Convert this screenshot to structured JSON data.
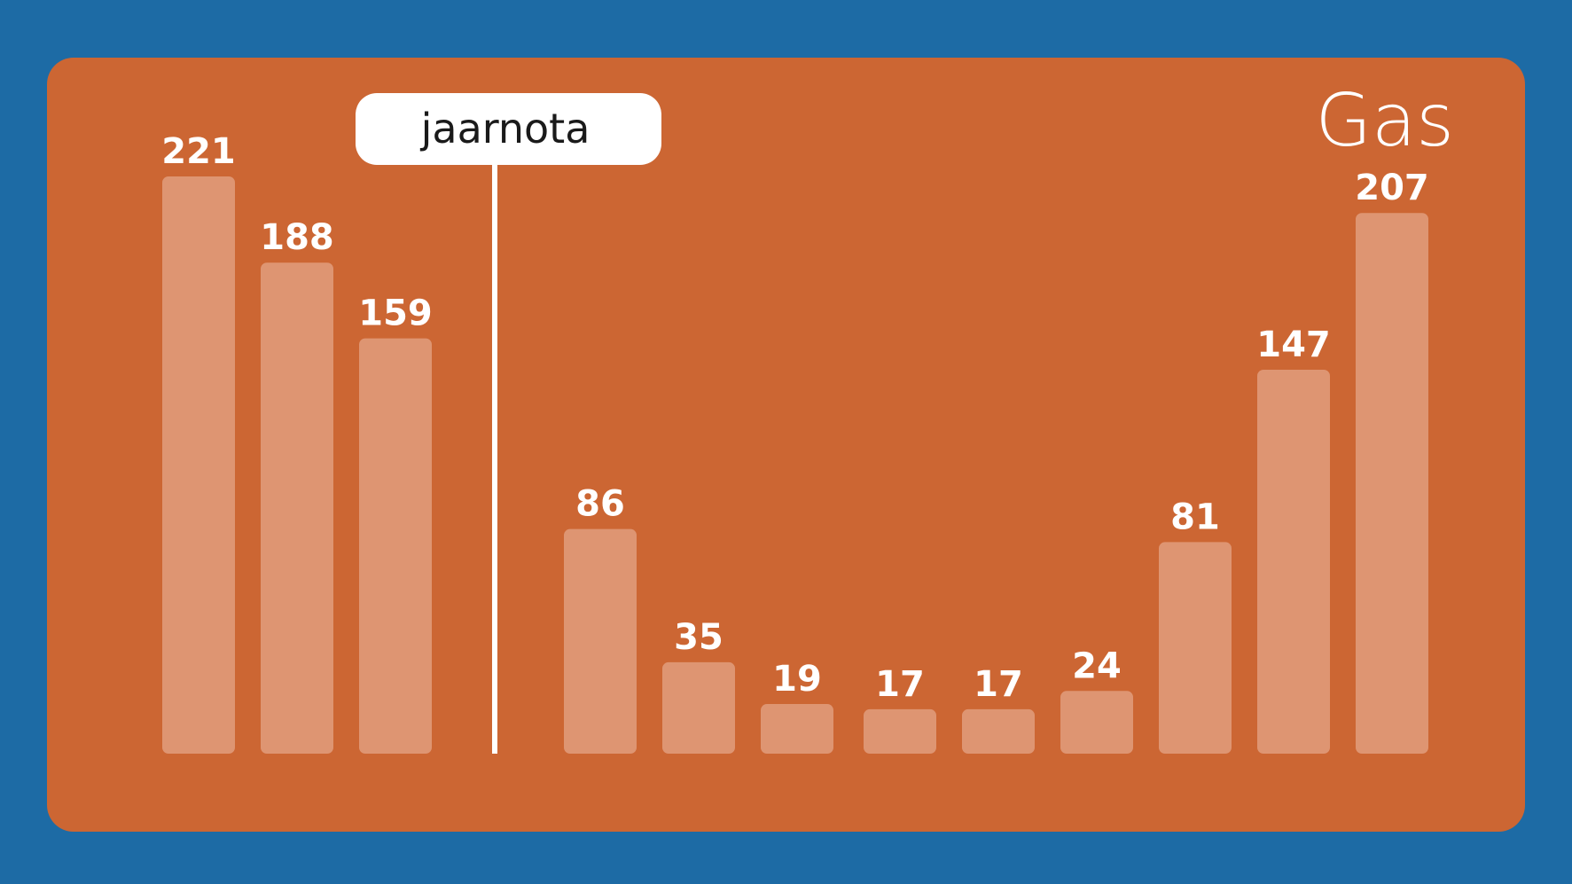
{
  "colors": {
    "background": "#1d6ba5",
    "panel": "#cc6633",
    "bar": "#de9572",
    "text": "#ffffff",
    "marker_box": "#ffffff",
    "marker_text": "#1a1a1a"
  },
  "chart_data": {
    "type": "bar",
    "title": "Gas",
    "values": [
      221,
      188,
      159,
      86,
      35,
      19,
      17,
      17,
      24,
      81,
      147,
      207
    ],
    "marker": {
      "label": "jaarnota",
      "after_index": 2
    },
    "ylim": [
      0,
      221
    ],
    "grid": false,
    "legend": "none"
  }
}
